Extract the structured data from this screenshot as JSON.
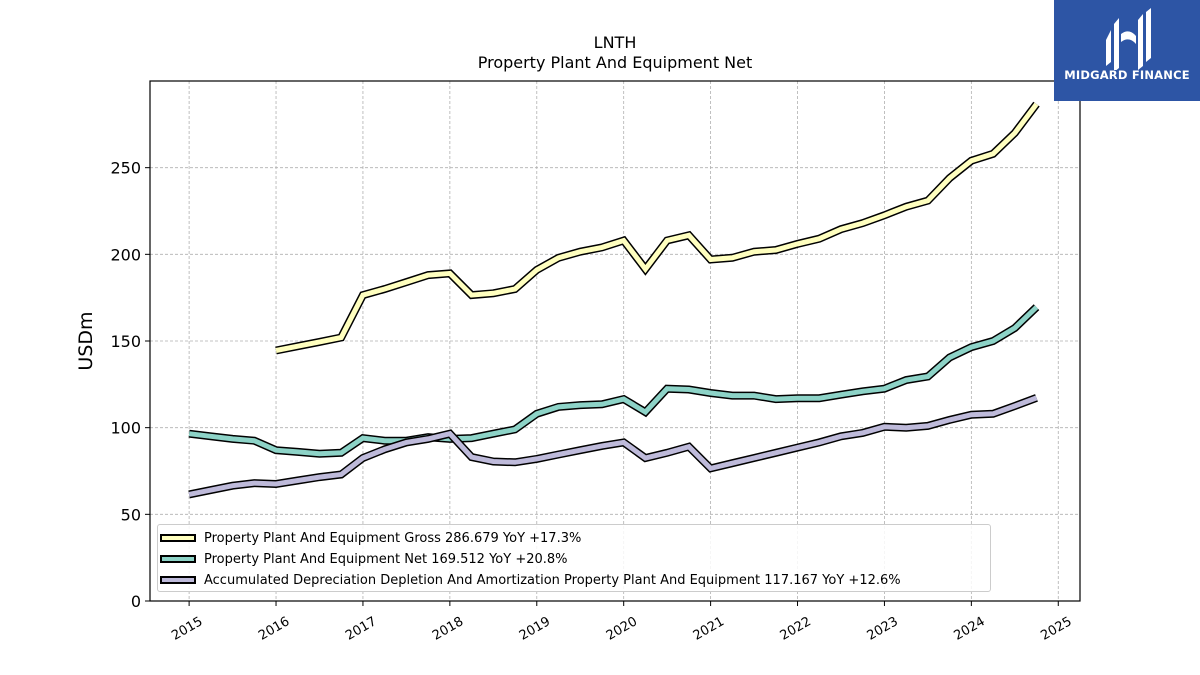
{
  "brand": {
    "name": "MIDGARD FINANCE",
    "bg_color": "#2d55a5"
  },
  "chart_data": {
    "type": "line",
    "title": "LNTH",
    "subtitle": "Property Plant And Equipment Net",
    "xlabel": "",
    "ylabel": "USDm",
    "xlim": [
      2014.55,
      2025.25
    ],
    "ylim": [
      0,
      300
    ],
    "yticks": [
      0,
      50,
      100,
      150,
      200,
      250
    ],
    "xticks": [
      "2015",
      "2016",
      "2017",
      "2018",
      "2019",
      "2020",
      "2021",
      "2022",
      "2023",
      "2024",
      "2025"
    ],
    "grid": true,
    "legend_position": "bottom-left",
    "series": [
      {
        "name": "Property Plant And Equipment Gross",
        "legend_label": "Property Plant And Equipment Gross  286.679 YoY +17.3%",
        "color": "#ffffbf",
        "x": [
          2016.0,
          2016.25,
          2016.5,
          2016.75,
          2017.0,
          2017.25,
          2017.5,
          2017.75,
          2018.0,
          2018.25,
          2018.5,
          2018.75,
          2019.0,
          2019.25,
          2019.5,
          2019.75,
          2020.0,
          2020.25,
          2020.5,
          2020.75,
          2021.0,
          2021.25,
          2021.5,
          2021.75,
          2022.0,
          2022.25,
          2022.5,
          2022.75,
          2023.0,
          2023.25,
          2023.5,
          2023.75,
          2024.0,
          2024.25,
          2024.5,
          2024.75
        ],
        "values": [
          144.5,
          147,
          149.5,
          152,
          176.5,
          180,
          184,
          188,
          189,
          176.5,
          177.5,
          180,
          191,
          198,
          201.5,
          204,
          208,
          191.5,
          208,
          211,
          197,
          198,
          201.5,
          202.5,
          206,
          209,
          214.5,
          218,
          222.5,
          227.5,
          231,
          244,
          254,
          258,
          270,
          286.7
        ]
      },
      {
        "name": "Property Plant And Equipment Net",
        "legend_label": "Property Plant And Equipment Net  169.512 YoY +20.8%",
        "color": "#8dd3c7",
        "x": [
          2015.0,
          2015.25,
          2015.5,
          2015.75,
          2016.0,
          2016.25,
          2016.5,
          2016.75,
          2017.0,
          2017.25,
          2017.5,
          2017.75,
          2018.0,
          2018.25,
          2018.5,
          2018.75,
          2019.0,
          2019.25,
          2019.5,
          2019.75,
          2020.0,
          2020.25,
          2020.5,
          2020.75,
          2021.0,
          2021.25,
          2021.5,
          2021.75,
          2022.0,
          2022.25,
          2022.5,
          2022.75,
          2023.0,
          2023.25,
          2023.5,
          2023.75,
          2024.0,
          2024.25,
          2024.5,
          2024.75
        ],
        "values": [
          96.5,
          95,
          93.5,
          92.5,
          87,
          86,
          85,
          85.5,
          94,
          92.5,
          92.5,
          94.5,
          93.5,
          94,
          96.5,
          99,
          108,
          112,
          113,
          113.5,
          116.5,
          109,
          122.5,
          122,
          120,
          118.5,
          118.5,
          116.5,
          117,
          117,
          119,
          121,
          122.5,
          127.5,
          129.5,
          140.5,
          146.5,
          150,
          157.5,
          169.5
        ]
      },
      {
        "name": "Accumulated Depreciation Depletion And Amortization Property Plant And Equipment",
        "legend_label": "Accumulated Depreciation Depletion And Amortization Property Plant And Equipment  117.167 YoY +12.6%",
        "color": "#bebada",
        "x": [
          2015.0,
          2015.25,
          2015.5,
          2015.75,
          2016.0,
          2016.25,
          2016.5,
          2016.75,
          2017.0,
          2017.25,
          2017.5,
          2017.75,
          2018.0,
          2018.25,
          2018.5,
          2018.75,
          2019.0,
          2019.25,
          2019.5,
          2019.75,
          2020.0,
          2020.25,
          2020.5,
          2020.75,
          2021.0,
          2021.25,
          2021.5,
          2021.75,
          2022.0,
          2022.25,
          2022.5,
          2022.75,
          2023.0,
          2023.25,
          2023.5,
          2023.75,
          2024.0,
          2024.25,
          2024.5,
          2024.75
        ],
        "values": [
          61.5,
          64,
          66.5,
          68,
          67.5,
          69.5,
          71.5,
          73,
          82.5,
          87.5,
          91.5,
          93.5,
          96.5,
          83,
          80.5,
          80,
          82,
          84.5,
          87,
          89.5,
          91.5,
          82.5,
          85.5,
          89,
          76.5,
          79.5,
          82.5,
          85.5,
          88.5,
          91.5,
          95,
          97,
          100.5,
          100,
          101,
          104.5,
          107.5,
          108,
          112.5,
          117.2
        ]
      }
    ]
  }
}
